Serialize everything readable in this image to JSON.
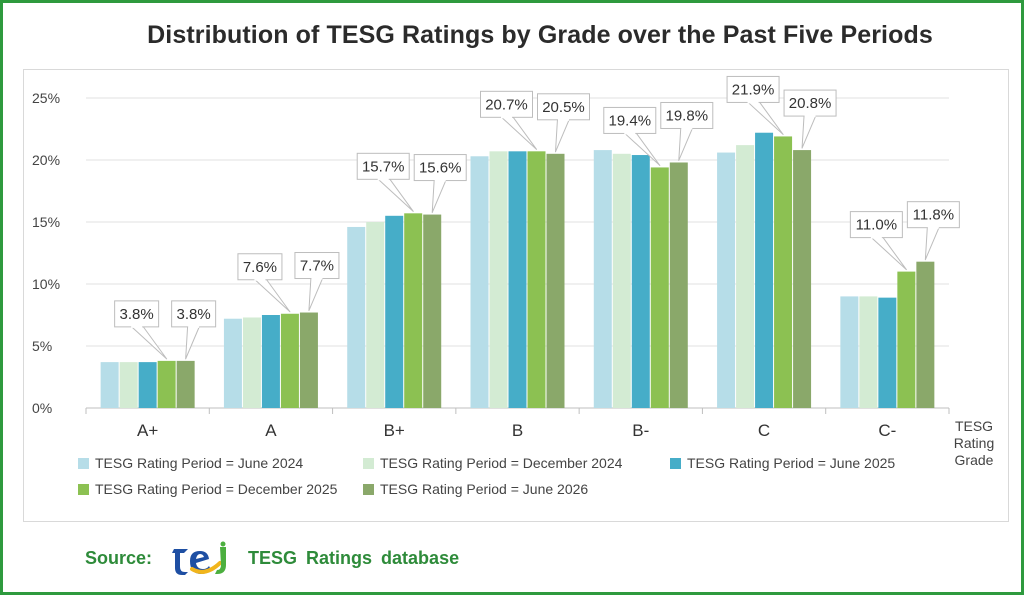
{
  "chart_data": {
    "type": "bar",
    "title": "Distribution of TESG Ratings by Grade over the Past Five Periods",
    "xlabel": "TESG Rating Grade",
    "ylabel": "",
    "ylim": [
      0,
      25
    ],
    "yticks": [
      0,
      5,
      10,
      15,
      20,
      25
    ],
    "ytick_labels": [
      "0%",
      "5%",
      "10%",
      "15%",
      "20%",
      "25%"
    ],
    "grid": true,
    "legend_position": "bottom",
    "categories": [
      "A+",
      "A",
      "B+",
      "B",
      "B-",
      "C",
      "C-"
    ],
    "series": [
      {
        "name": "TESG Rating Period = June 2024",
        "color": "#b6dde8",
        "values": [
          3.7,
          7.2,
          14.6,
          20.3,
          20.8,
          20.6,
          9.0
        ]
      },
      {
        "name": "TESG Rating Period = December 2024",
        "color": "#d3ebd3",
        "values": [
          3.7,
          7.3,
          15.0,
          20.7,
          20.5,
          21.2,
          9.0
        ]
      },
      {
        "name": "TESG Rating Period = June 2025",
        "color": "#46adc8",
        "values": [
          3.7,
          7.5,
          15.5,
          20.7,
          20.4,
          22.2,
          8.9
        ]
      },
      {
        "name": "TESG Rating Period = December 2025",
        "color": "#8cc152",
        "values": [
          3.8,
          7.6,
          15.7,
          20.7,
          19.4,
          21.9,
          11.0
        ]
      },
      {
        "name": "TESG Rating Period = June 2026",
        "color": "#8aa86a",
        "values": [
          3.8,
          7.7,
          15.6,
          20.5,
          19.8,
          20.8,
          11.8
        ]
      }
    ],
    "annotations": [
      {
        "category": "A+",
        "series": 3,
        "text": "3.8%"
      },
      {
        "category": "A+",
        "series": 4,
        "text": "3.8%"
      },
      {
        "category": "A",
        "series": 3,
        "text": "7.6%"
      },
      {
        "category": "A",
        "series": 4,
        "text": "7.7%"
      },
      {
        "category": "B+",
        "series": 3,
        "text": "15.7%"
      },
      {
        "category": "B+",
        "series": 4,
        "text": "15.6%"
      },
      {
        "category": "B",
        "series": 3,
        "text": "20.7%"
      },
      {
        "category": "B",
        "series": 4,
        "text": "20.5%"
      },
      {
        "category": "B-",
        "series": 3,
        "text": "19.4%"
      },
      {
        "category": "B-",
        "series": 4,
        "text": "19.8%"
      },
      {
        "category": "C",
        "series": 3,
        "text": "21.9%"
      },
      {
        "category": "C",
        "series": 4,
        "text": "20.8%"
      },
      {
        "category": "C-",
        "series": 3,
        "text": "11.0%"
      },
      {
        "category": "C-",
        "series": 4,
        "text": "11.8%"
      }
    ]
  },
  "source": {
    "label": "Source:",
    "text": "TESG Ratings database",
    "logo_icon": "tej-logo-icon"
  }
}
